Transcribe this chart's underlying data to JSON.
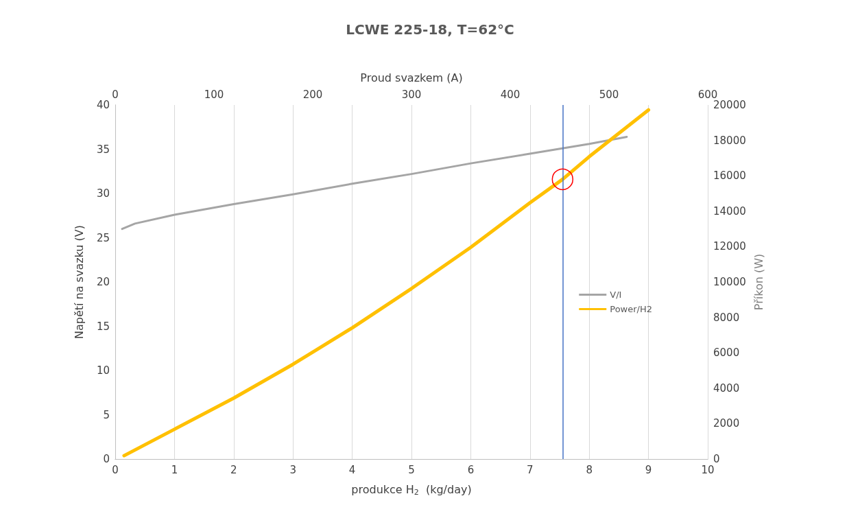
{
  "chart_data": {
    "type": "line",
    "title": "LCWE 225-18, T=62°C",
    "xlabel": "produkce H$_{2}$  (kg/day)",
    "x2label": "Proud svazkem (A)",
    "ylabel": "Napětí na svazku (V)",
    "y2label": "Příkon (W)",
    "xlim": [
      0,
      10
    ],
    "xticks": [
      0,
      1,
      2,
      3,
      4,
      5,
      6,
      7,
      8,
      9,
      10
    ],
    "x2lim": [
      0,
      600
    ],
    "x2ticks": [
      0,
      100,
      200,
      300,
      400,
      500,
      600
    ],
    "ylim": [
      0,
      40
    ],
    "yticks": [
      0,
      5,
      10,
      15,
      20,
      25,
      30,
      35,
      40
    ],
    "y2lim": [
      0,
      20000
    ],
    "y2ticks": [
      0,
      2000,
      4000,
      6000,
      8000,
      10000,
      12000,
      14000,
      16000,
      18000,
      20000
    ],
    "series": [
      {
        "name": "V/I",
        "color": "#a5a5a5",
        "axis": "x2",
        "x": [
          7,
          20,
          60,
          120,
          180,
          240,
          300,
          360,
          420,
          480,
          518
        ],
        "values": [
          26.0,
          26.6,
          27.6,
          28.8,
          29.9,
          31.1,
          32.2,
          33.4,
          34.5,
          35.6,
          36.4
        ]
      },
      {
        "name": "Power/H2",
        "color": "#ffc000",
        "axis": "y2",
        "x": [
          0.15,
          1,
          2,
          3,
          4,
          5,
          6,
          7,
          7.55,
          8,
          9
        ],
        "values": [
          190,
          1680,
          3440,
          5350,
          7410,
          9630,
          11960,
          14480,
          15800,
          17080,
          19720
        ]
      }
    ],
    "ref_lines": [
      {
        "axis": "x",
        "value": 7.55,
        "color": "#4472c4",
        "line_style": "solid"
      }
    ],
    "grid": "x",
    "legend": "right",
    "marker": "none",
    "line_style": "solid"
  }
}
